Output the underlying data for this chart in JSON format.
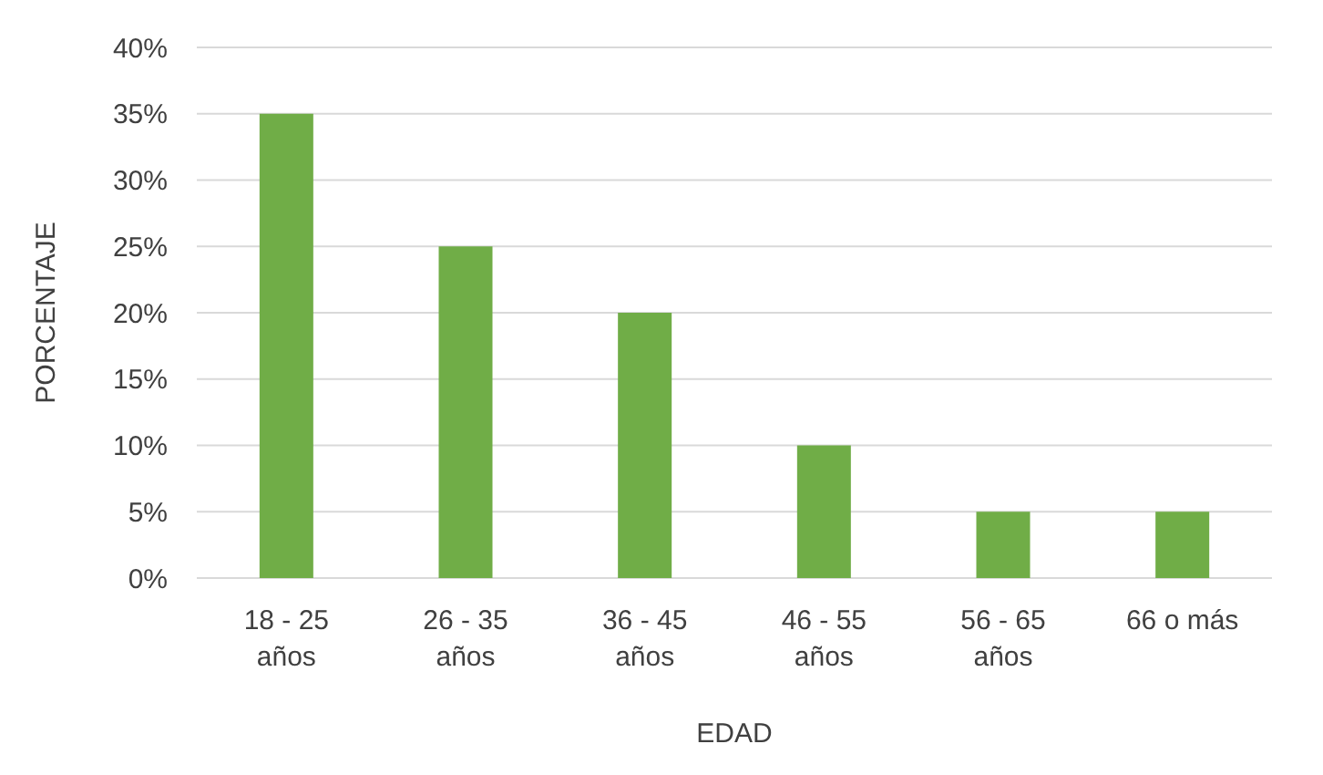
{
  "chart_data": {
    "type": "bar",
    "xlabel": "EDAD",
    "ylabel": "PORCENTAJE",
    "categories": [
      "18 - 25\naños",
      "26 - 35\naños",
      "36 - 45\naños",
      "46 - 55\naños",
      "56 - 65\naños",
      "66 o más"
    ],
    "values": [
      35,
      25,
      20,
      10,
      5,
      5
    ],
    "color": "#70ad47",
    "ylim": [
      0,
      40
    ],
    "yticks": [
      {
        "value": 0,
        "label": "0%"
      },
      {
        "value": 5,
        "label": "5%"
      },
      {
        "value": 10,
        "label": "10%"
      },
      {
        "value": 15,
        "label": "15%"
      },
      {
        "value": 20,
        "label": "20%"
      },
      {
        "value": 25,
        "label": "25%"
      },
      {
        "value": 30,
        "label": "30%"
      },
      {
        "value": 35,
        "label": "35%"
      },
      {
        "value": 40,
        "label": "40%"
      }
    ],
    "grid": "y"
  }
}
